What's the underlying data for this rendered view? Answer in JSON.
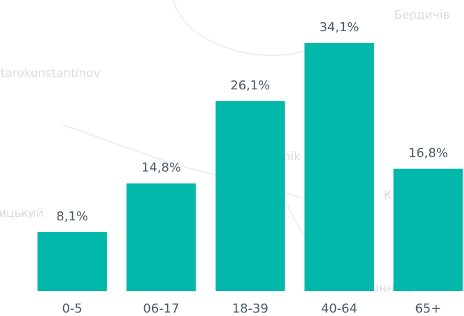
{
  "chart_data": {
    "type": "bar",
    "categories": [
      "0-5",
      "06-17",
      "18-39",
      "40-64",
      "65+"
    ],
    "values": [
      8.1,
      14.8,
      26.1,
      34.1,
      16.8
    ],
    "value_labels": [
      "8,1%",
      "14,8%",
      "26,1%",
      "34,1%",
      "16,8%"
    ],
    "color": "#01b8aa",
    "ylim": [
      0,
      40
    ]
  },
  "map_labels": [
    "Бердичів",
    "Starokonstantinov",
    "ицький",
    "nik",
    "К",
    "Вінниця"
  ]
}
